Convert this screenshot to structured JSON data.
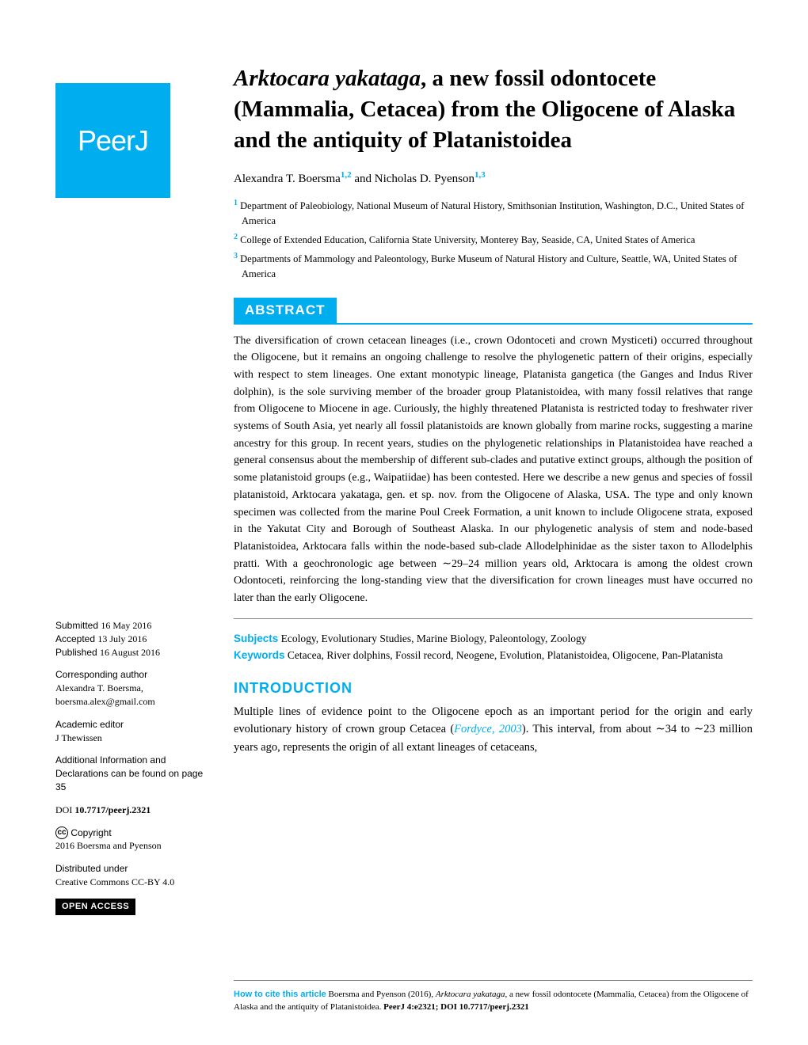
{
  "logo": {
    "text": "PeerJ"
  },
  "title": {
    "italic_part": "Arktocara yakataga",
    "rest": ", a new fossil odontocete (Mammalia, Cetacea) from the Oligocene of Alaska and the antiquity of Platanistoidea"
  },
  "authors": {
    "author1": {
      "name": "Alexandra T. Boersma",
      "sup": "1,2"
    },
    "connector": " and ",
    "author2": {
      "name": "Nicholas D. Pyenson",
      "sup": "1,3"
    }
  },
  "affiliations": {
    "a1": {
      "sup": "1",
      "text": " Department of Paleobiology, National Museum of Natural History, Smithsonian Institution, Washington, D.C., United States of America"
    },
    "a2": {
      "sup": "2",
      "text": " College of Extended Education, California State University, Monterey Bay, Seaside, CA, United States of America"
    },
    "a3": {
      "sup": "3",
      "text": " Departments of Mammology and Paleontology, Burke Museum of Natural History and Culture, Seattle, WA, United States of America"
    }
  },
  "abstract": {
    "header": "ABSTRACT",
    "text": "The diversification of crown cetacean lineages (i.e., crown Odontoceti and crown Mysticeti) occurred throughout the Oligocene, but it remains an ongoing challenge to resolve the phylogenetic pattern of their origins, especially with respect to stem lineages. One extant monotypic lineage, Platanista gangetica (the Ganges and Indus River dolphin), is the sole surviving member of the broader group Platanistoidea, with many fossil relatives that range from Oligocene to Miocene in age. Curiously, the highly threatened Platanista is restricted today to freshwater river systems of South Asia, yet nearly all fossil platanistoids are known globally from marine rocks, suggesting a marine ancestry for this group. In recent years, studies on the phylogenetic relationships in Platanistoidea have reached a general consensus about the membership of different sub-clades and putative extinct groups, although the position of some platanistoid groups (e.g., Waipatiidae) has been contested. Here we describe a new genus and species of fossil platanistoid, Arktocara yakataga, gen. et sp. nov. from the Oligocene of Alaska, USA. The type and only known specimen was collected from the marine Poul Creek Formation, a unit known to include Oligocene strata, exposed in the Yakutat City and Borough of Southeast Alaska. In our phylogenetic analysis of stem and node-based Platanistoidea, Arktocara falls within the node-based sub-clade Allodelphinidae as the sister taxon to Allodelphis pratti. With a geochronologic age between ∼29–24 million years old, Arktocara is among the oldest crown Odontoceti, reinforcing the long-standing view that the diversification for crown lineages must have occurred no later than the early Oligocene."
  },
  "subjects": {
    "label": "Subjects",
    "text": " Ecology, Evolutionary Studies, Marine Biology, Paleontology, Zoology"
  },
  "keywords": {
    "label": "Keywords",
    "text": " Cetacea, River dolphins, Fossil record, Neogene, Evolution, Platanistoidea, Oligocene, Pan-Platanista"
  },
  "introduction": {
    "header": "INTRODUCTION",
    "text_before_link": "Multiple lines of evidence point to the Oligocene epoch as an important period for the origin and early evolutionary history of crown group Cetacea (",
    "link": "Fordyce, 2003",
    "text_after_link": "). This interval, from about ∼34 to ∼23 million years ago, represents the origin of all extant lineages of cetaceans,"
  },
  "sidebar": {
    "submitted": {
      "label": "Submitted ",
      "value": "16 May 2016"
    },
    "accepted": {
      "label": "Accepted ",
      "value": "13 July 2016"
    },
    "published": {
      "label": "Published ",
      "value": "16 August 2016"
    },
    "corresponding": {
      "label": "Corresponding author",
      "name": "Alexandra T. Boersma,",
      "email": "boersma.alex@gmail.com"
    },
    "editor": {
      "label": "Academic editor",
      "name": "J Thewissen"
    },
    "additional": "Additional Information and Declarations can be found on page 35",
    "doi": {
      "label": "DOI ",
      "value": "10.7717/peerj.2321"
    },
    "copyright": {
      "label": " Copyright",
      "holder": "2016 Boersma and Pyenson"
    },
    "distributed": {
      "label": "Distributed under",
      "license": "Creative Commons CC-BY 4.0"
    },
    "open_access": "OPEN ACCESS"
  },
  "footer": {
    "label": "How to cite this article",
    "text1": " Boersma and Pyenson (2016), ",
    "italic1": "Arktocara yakataga",
    "text2": ", a new fossil odontocete (Mammalia, Cetacea) from the Oligocene of Alaska and the antiquity of Platanistoidea. ",
    "bold1": "PeerJ 4:e2321; DOI 10.7717/peerj.2321"
  },
  "colors": {
    "accent": "#00aef0",
    "text": "#000000",
    "bg": "#ffffff"
  }
}
